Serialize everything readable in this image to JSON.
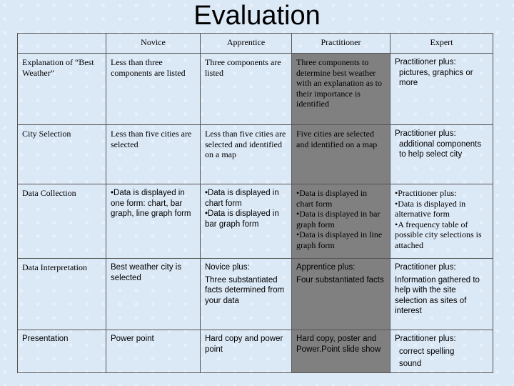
{
  "title": "Evaluation",
  "table": {
    "columns": [
      "Novice",
      "Apprentice",
      "Practitioner",
      "Expert"
    ],
    "rows": [
      [
        [
          "Explanation of “Best Weather”"
        ],
        [
          "Less than three components are listed"
        ],
        [
          "Three components are listed"
        ],
        [
          "Three components to determine best weather with an explanation as to their importance is identified"
        ],
        [
          "Practitioner plus:",
          "pictures, graphics or more"
        ]
      ],
      [
        [
          "City Selection"
        ],
        [
          "Less than five cities are selected"
        ],
        [
          "Less than five cities are selected and identified on a map"
        ],
        [
          "Five cities are selected and identified on a map"
        ],
        [
          "Practitioner plus:",
          "additional components to help select city"
        ]
      ],
      [
        [
          "Data Collection"
        ],
        [
          "•Data is displayed in one form: chart, bar graph, line graph form"
        ],
        [
          "•Data is displayed in chart form",
          "•Data is displayed in bar graph form"
        ],
        [
          "•Data is displayed in chart form",
          "•Data is displayed in bar graph form",
          "•Data is displayed in line graph form"
        ],
        [
          "•Practitioner plus:",
          "•Data is displayed in alternative form",
          "•A frequency table of possible city selections is attached"
        ]
      ],
      [
        [
          "Data Interpretation"
        ],
        [
          "Best weather city is selected"
        ],
        [
          "Novice plus:",
          "Three substantiated facts determined from your data"
        ],
        [
          "Apprentice plus:",
          "Four substantiated facts"
        ],
        [
          "Practitioner plus:",
          "Information gathered to help with the site selection as sites of interest"
        ]
      ],
      [
        [
          "Presentation"
        ],
        [
          "Power point"
        ],
        [
          "Hard copy and power point"
        ],
        [
          "Hard copy, poster and Power.Point slide show"
        ],
        [
          "Practitioner plus:",
          "correct spelling",
          "sound"
        ]
      ]
    ]
  }
}
